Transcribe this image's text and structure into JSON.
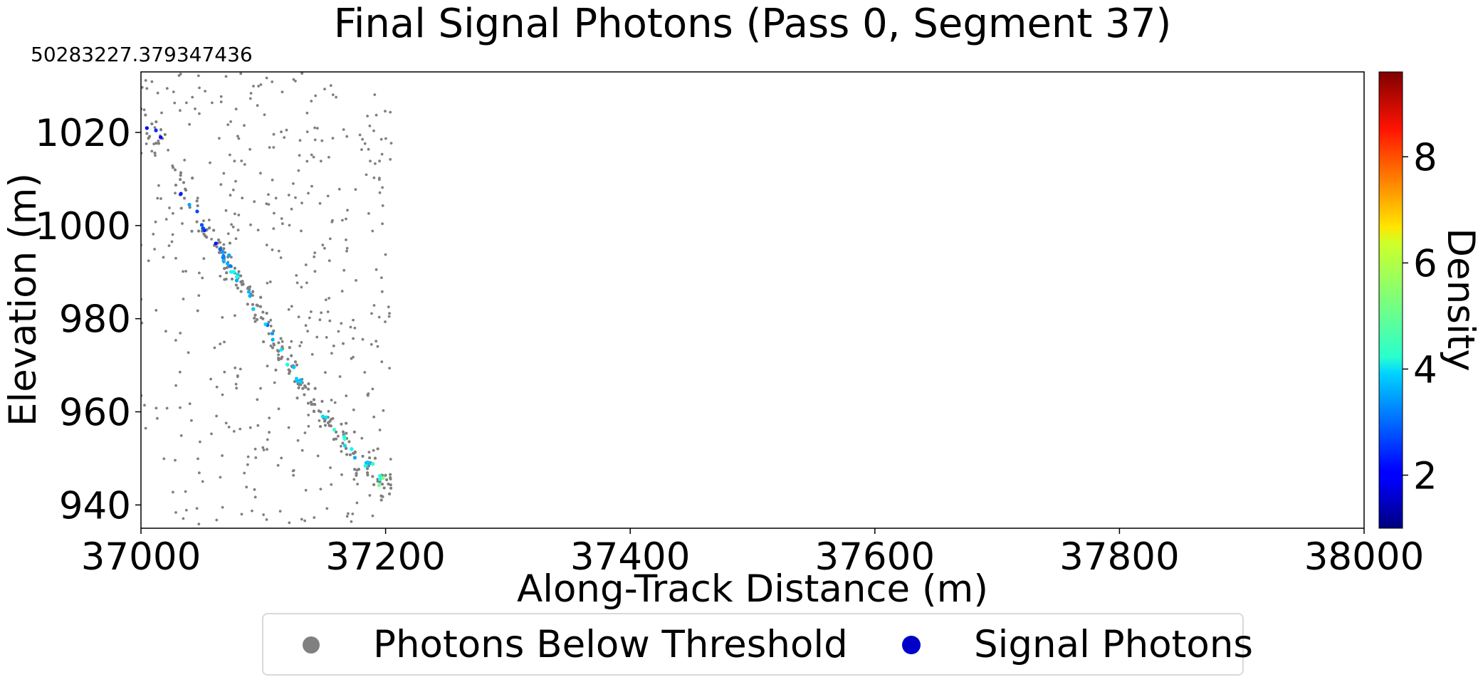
{
  "chart_data": {
    "type": "scatter",
    "title": "Final Signal Photons (Pass 0, Segment 37)",
    "x_offset_label": "50283227.379347436",
    "xlabel": "Along-Track Distance (m)",
    "ylabel": "Elevation (m)",
    "xlim": [
      37000,
      38000
    ],
    "ylim": [
      935,
      1033
    ],
    "x_ticks": [
      "37000",
      "37200",
      "37400",
      "37600",
      "37800",
      "38000"
    ],
    "y_ticks": [
      "940",
      "960",
      "980",
      "1000",
      "1020"
    ],
    "grid": false,
    "colorbar": {
      "label": "Density",
      "range": [
        1.0,
        9.6
      ],
      "ticks": [
        "2",
        "4",
        "6",
        "8"
      ],
      "colormap": "jet"
    },
    "legend": {
      "position": "below",
      "entries": [
        {
          "label": "Photons Below Threshold",
          "color": "#808080"
        },
        {
          "label": "Signal Photons",
          "color": "#0000c8"
        }
      ]
    },
    "series": [
      {
        "name": "Photons Below Threshold",
        "color": "#808080",
        "description_points": "scattered noise photons between x 37000 and 37205, plus a dense band along the surface",
        "x_range": [
          37000,
          37205
        ],
        "y_range": [
          935,
          1033
        ]
      },
      {
        "name": "Signal Photons",
        "color_by": "density",
        "surface_trace": {
          "x": [
            37000,
            37020,
            37040,
            37060,
            37080,
            37100,
            37120,
            37140,
            37160,
            37180,
            37200
          ],
          "y": [
            1023,
            1016,
            1004,
            996,
            988,
            979,
            970,
            962,
            955,
            950,
            944
          ]
        },
        "density_trace": [
          2.2,
          2.0,
          3.0,
          2.3,
          4.2,
          3.4,
          4.0,
          3.6,
          4.8,
          3.8,
          5.0
        ]
      }
    ]
  }
}
